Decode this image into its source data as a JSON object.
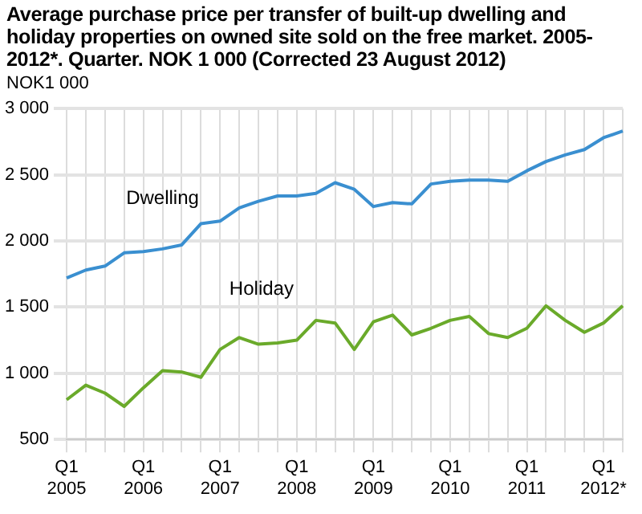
{
  "chart_data": {
    "type": "line",
    "title": "Average purchase price per transfer of built-up dwelling and holiday properties on owned site sold on the free market. 2005-2012*. Quarter. NOK 1 000 (Corrected 23 August 2012)",
    "ylabel": "NOK1 000",
    "categories": [
      "Q1 2005",
      null,
      null,
      null,
      "Q1 2006",
      null,
      null,
      null,
      "Q1 2007",
      null,
      null,
      null,
      "Q1 2008",
      null,
      null,
      null,
      "Q1 2009",
      null,
      null,
      null,
      "Q1 2010",
      null,
      null,
      null,
      "Q1 2011",
      null,
      null,
      null,
      "Q1 2012*",
      null
    ],
    "series": [
      {
        "name": "Dwelling",
        "color": "#3a8fd0",
        "values": [
          1720,
          1780,
          1810,
          1910,
          1920,
          1940,
          1970,
          2130,
          2150,
          2250,
          2300,
          2340,
          2340,
          2360,
          2440,
          2390,
          2260,
          2290,
          2280,
          2430,
          2450,
          2460,
          2460,
          2450,
          2530,
          2600,
          2650,
          2690,
          2780,
          2830
        ]
      },
      {
        "name": "Holiday",
        "color": "#6aaa2a",
        "values": [
          800,
          910,
          850,
          750,
          890,
          1020,
          1010,
          970,
          1180,
          1270,
          1220,
          1230,
          1250,
          1400,
          1380,
          1180,
          1390,
          1440,
          1290,
          1340,
          1400,
          1430,
          1300,
          1270,
          1340,
          1510,
          1400,
          1310,
          1380,
          1510
        ]
      }
    ],
    "ylim": [
      500,
      3000
    ],
    "yticks": [
      500,
      1000,
      1500,
      2000,
      2500,
      3000
    ],
    "grid": true,
    "legend": false,
    "marker": "none",
    "line_style": "solid"
  }
}
